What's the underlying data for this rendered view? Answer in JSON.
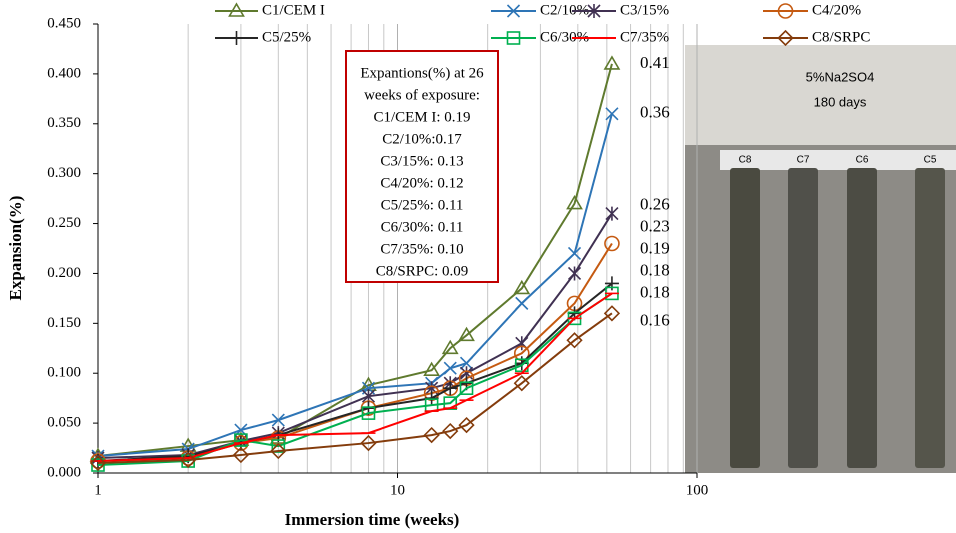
{
  "chart_data": {
    "type": "line",
    "xlabel": "Immersion time (weeks)",
    "ylabel": "Expansion(%)",
    "x": [
      1,
      2,
      3,
      4,
      8,
      13,
      15,
      17,
      26,
      39,
      52
    ],
    "xscale": "log",
    "xlim": [
      1,
      100
    ],
    "xticks": [
      1,
      10,
      100
    ],
    "xminorticks": [
      2,
      3,
      4,
      5,
      6,
      7,
      8,
      9,
      20,
      30,
      40,
      50,
      60,
      70,
      80,
      90
    ],
    "ylim": [
      0,
      0.45
    ],
    "yticks": [
      {
        "value": 0,
        "label": "0.000"
      },
      {
        "value": 0.05,
        "label": "0.050"
      },
      {
        "value": 0.1,
        "label": "0.100"
      },
      {
        "value": 0.15,
        "label": "0.150"
      },
      {
        "value": 0.2,
        "label": "0.200"
      },
      {
        "value": 0.25,
        "label": "0.250"
      },
      {
        "value": 0.3,
        "label": "0.300"
      },
      {
        "value": 0.35,
        "label": "0.350"
      },
      {
        "value": 0.4,
        "label": "0.400"
      },
      {
        "value": 0.45,
        "label": "0.450"
      }
    ],
    "grid": true,
    "series": [
      {
        "name": "C1/CEM I",
        "color": "#5f7a2e",
        "marker": "triangle",
        "end_label": "0.41",
        "values": [
          0.017,
          0.027,
          0.033,
          0.035,
          0.088,
          0.103,
          0.125,
          0.138,
          0.185,
          0.27,
          0.41
        ]
      },
      {
        "name": "C2/10%",
        "color": "#2e75b6",
        "marker": "x",
        "end_label": "0.36",
        "values": [
          0.017,
          0.024,
          0.043,
          0.053,
          0.085,
          0.09,
          0.105,
          0.11,
          0.17,
          0.22,
          0.36
        ]
      },
      {
        "name": "C3/15%",
        "color": "#403152",
        "marker": "star",
        "end_label": "0.26",
        "values": [
          0.015,
          0.018,
          0.032,
          0.04,
          0.077,
          0.085,
          0.09,
          0.1,
          0.13,
          0.2,
          0.26
        ]
      },
      {
        "name": "C4/20%",
        "color": "#c55a11",
        "marker": "circle",
        "end_label": "0.23",
        "values": [
          0.012,
          0.015,
          0.03,
          0.035,
          0.065,
          0.08,
          0.085,
          0.095,
          0.12,
          0.17,
          0.23
        ]
      },
      {
        "name": "C5/25%",
        "color": "#262626",
        "marker": "plus",
        "end_label": "0.19",
        "values": [
          0.012,
          0.017,
          0.03,
          0.038,
          0.065,
          0.075,
          0.085,
          0.09,
          0.11,
          0.16,
          0.19
        ]
      },
      {
        "name": "C6/30%",
        "color": "#00b050",
        "marker": "square",
        "end_label": "0.18",
        "values": [
          0.008,
          0.012,
          0.033,
          0.027,
          0.06,
          0.068,
          0.07,
          0.085,
          0.108,
          0.155,
          0.18
        ]
      },
      {
        "name": "C7/35%",
        "color": "#ff0000",
        "marker": "dash",
        "end_label": "0.18",
        "values": [
          0.012,
          0.015,
          0.03,
          0.038,
          0.04,
          0.062,
          0.065,
          0.073,
          0.1,
          0.155,
          0.18
        ]
      },
      {
        "name": "C8/SRPC",
        "color": "#843c0c",
        "marker": "diamond",
        "end_label": "0.16",
        "values": [
          0.01,
          0.013,
          0.018,
          0.022,
          0.03,
          0.038,
          0.042,
          0.048,
          0.09,
          0.133,
          0.16
        ]
      }
    ],
    "annotation_box": [
      "Expantions(%)  at 26",
      "weeks of exposure:",
      "C1/CEM I: 0.19",
      "C2/10%:0.17",
      "C3/15%: 0.13",
      "C4/20%: 0.12",
      "C5/25%: 0.11",
      "C6/30%: 0.11",
      "C7/35%: 0.10",
      "C8/SRPC: 0.09"
    ]
  },
  "photo": {
    "caption": [
      "5%Na2SO4",
      "180 days"
    ],
    "labels": [
      "C8",
      "C7",
      "C6",
      "C5"
    ]
  }
}
